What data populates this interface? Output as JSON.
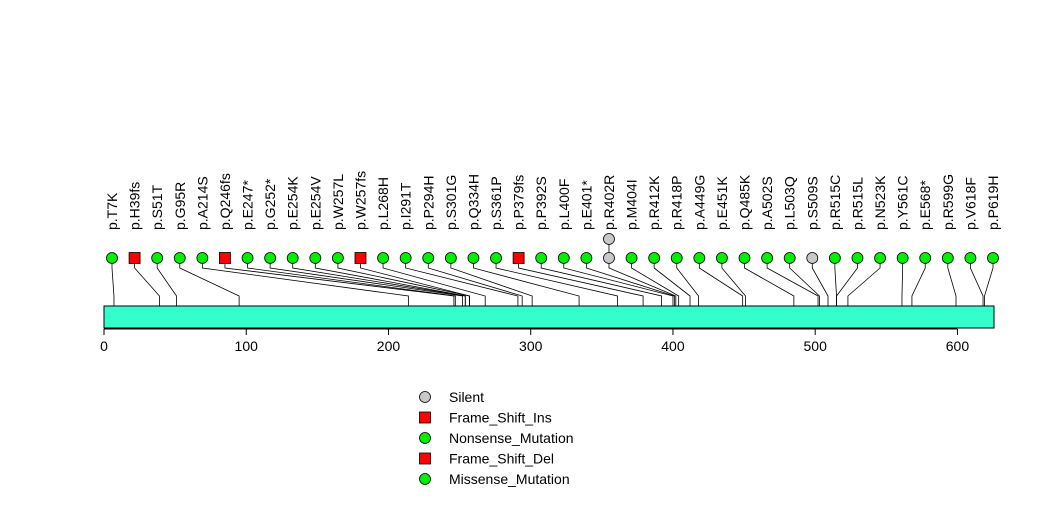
{
  "chart_data": {
    "type": "lollipop",
    "title": "",
    "xlabel": "",
    "ylabel": "",
    "xlim": [
      0,
      625
    ],
    "x_ticks": [
      0,
      100,
      200,
      300,
      400,
      500,
      600
    ],
    "protein_length": 625,
    "domain_color": "#33ffcc",
    "stem_color": "#000000",
    "mutations": [
      {
        "label": "p.T7K",
        "pos": 7,
        "type": "Missense_Mutation",
        "count": 1
      },
      {
        "label": "p.H39fs",
        "pos": 39,
        "type": "Frame_Shift_Del",
        "count": 1
      },
      {
        "label": "p.S51T",
        "pos": 51,
        "type": "Missense_Mutation",
        "count": 1
      },
      {
        "label": "p.G95R",
        "pos": 95,
        "type": "Missense_Mutation",
        "count": 1
      },
      {
        "label": "p.A214S",
        "pos": 214,
        "type": "Missense_Mutation",
        "count": 1
      },
      {
        "label": "p.Q246fs",
        "pos": 246,
        "type": "Frame_Shift_Del",
        "count": 1
      },
      {
        "label": "p.E247*",
        "pos": 247,
        "type": "Nonsense_Mutation",
        "count": 1
      },
      {
        "label": "p.G252*",
        "pos": 252,
        "type": "Nonsense_Mutation",
        "count": 1
      },
      {
        "label": "p.E254K",
        "pos": 254,
        "type": "Missense_Mutation",
        "count": 1
      },
      {
        "label": "p.E254V",
        "pos": 254,
        "type": "Missense_Mutation",
        "count": 1
      },
      {
        "label": "p.W257L",
        "pos": 257,
        "type": "Missense_Mutation",
        "count": 1
      },
      {
        "label": "p.W257fs",
        "pos": 257,
        "type": "Frame_Shift_Del",
        "count": 1
      },
      {
        "label": "p.L268H",
        "pos": 268,
        "type": "Missense_Mutation",
        "count": 1
      },
      {
        "label": "p.I291T",
        "pos": 291,
        "type": "Missense_Mutation",
        "count": 1
      },
      {
        "label": "p.P294H",
        "pos": 294,
        "type": "Missense_Mutation",
        "count": 1
      },
      {
        "label": "p.S301G",
        "pos": 301,
        "type": "Missense_Mutation",
        "count": 1
      },
      {
        "label": "p.Q334H",
        "pos": 334,
        "type": "Missense_Mutation",
        "count": 1
      },
      {
        "label": "p.S361P",
        "pos": 361,
        "type": "Missense_Mutation",
        "count": 1
      },
      {
        "label": "p.P379fs",
        "pos": 379,
        "type": "Frame_Shift_Ins",
        "count": 1
      },
      {
        "label": "p.P392S",
        "pos": 392,
        "type": "Missense_Mutation",
        "count": 1
      },
      {
        "label": "p.L400F",
        "pos": 400,
        "type": "Missense_Mutation",
        "count": 1
      },
      {
        "label": "p.E401*",
        "pos": 401,
        "type": "Nonsense_Mutation",
        "count": 1
      },
      {
        "label": "p.R402R",
        "pos": 402,
        "type": "Silent",
        "count": 2
      },
      {
        "label": "p.M404I",
        "pos": 404,
        "type": "Missense_Mutation",
        "count": 1
      },
      {
        "label": "p.R412K",
        "pos": 412,
        "type": "Missense_Mutation",
        "count": 1
      },
      {
        "label": "p.R418P",
        "pos": 418,
        "type": "Missense_Mutation",
        "count": 1
      },
      {
        "label": "p.A449G",
        "pos": 449,
        "type": "Missense_Mutation",
        "count": 1
      },
      {
        "label": "p.E451K",
        "pos": 451,
        "type": "Missense_Mutation",
        "count": 1
      },
      {
        "label": "p.Q485K",
        "pos": 485,
        "type": "Missense_Mutation",
        "count": 1
      },
      {
        "label": "p.A502S",
        "pos": 502,
        "type": "Missense_Mutation",
        "count": 1
      },
      {
        "label": "p.L503Q",
        "pos": 503,
        "type": "Missense_Mutation",
        "count": 1
      },
      {
        "label": "p.S509S",
        "pos": 509,
        "type": "Silent",
        "count": 1
      },
      {
        "label": "p.R515C",
        "pos": 515,
        "type": "Missense_Mutation",
        "count": 1
      },
      {
        "label": "p.R515L",
        "pos": 515,
        "type": "Missense_Mutation",
        "count": 1
      },
      {
        "label": "p.N523K",
        "pos": 523,
        "type": "Missense_Mutation",
        "count": 1
      },
      {
        "label": "p.Y561C",
        "pos": 561,
        "type": "Missense_Mutation",
        "count": 1
      },
      {
        "label": "p.E568*",
        "pos": 568,
        "type": "Nonsense_Mutation",
        "count": 1
      },
      {
        "label": "p.R599G",
        "pos": 599,
        "type": "Missense_Mutation",
        "count": 1
      },
      {
        "label": "p.V618F",
        "pos": 618,
        "type": "Missense_Mutation",
        "count": 1
      },
      {
        "label": "p.P619H",
        "pos": 619,
        "type": "Missense_Mutation",
        "count": 1
      }
    ],
    "legend": [
      {
        "label": "Silent",
        "shape": "circle",
        "color": "#c8c8c8"
      },
      {
        "label": "Frame_Shift_Ins",
        "shape": "square",
        "color": "#ff0000"
      },
      {
        "label": "Nonsense_Mutation",
        "shape": "circle",
        "color": "#00ee00"
      },
      {
        "label": "Frame_Shift_Del",
        "shape": "square",
        "color": "#ff0000"
      },
      {
        "label": "Missense_Mutation",
        "shape": "circle",
        "color": "#00ee00"
      }
    ]
  }
}
